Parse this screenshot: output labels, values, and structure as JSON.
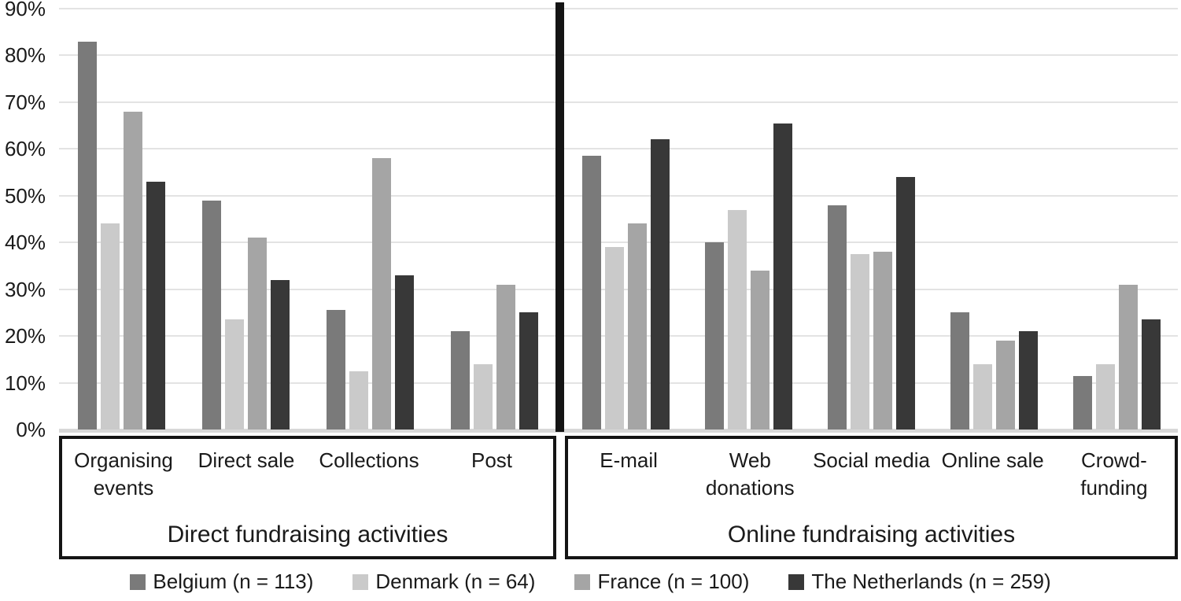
{
  "chart_data": {
    "type": "bar",
    "title": "",
    "xlabel": "",
    "ylabel": "",
    "ylim": [
      0,
      90
    ],
    "ytick_step": 10,
    "ytick_suffix": "%",
    "grid": true,
    "legend_position": "bottom",
    "sections": [
      {
        "label": "Direct fundraising activities",
        "categories": [
          [
            "Organising",
            "events"
          ],
          [
            "Direct sale"
          ],
          [
            "Collections"
          ],
          [
            "Post"
          ]
        ]
      },
      {
        "label": "Online fundraising activities",
        "categories": [
          [
            "E-mail"
          ],
          [
            "Web",
            "donations"
          ],
          [
            "Social media"
          ],
          [
            "Online sale"
          ],
          [
            "Crowd-",
            "funding"
          ]
        ]
      }
    ],
    "series": [
      {
        "name": "Belgium (n = 113)",
        "color": "#7a7a7a",
        "values": [
          [
            83,
            49,
            25.5,
            21
          ],
          [
            58.5,
            40,
            48,
            25,
            11.5
          ]
        ]
      },
      {
        "name": "Denmark (n = 64)",
        "color": "#cacaca",
        "values": [
          [
            44,
            23.5,
            12.5,
            14
          ],
          [
            39,
            47,
            37.5,
            14,
            14
          ]
        ]
      },
      {
        "name": "France (n = 100)",
        "color": "#a5a5a5",
        "values": [
          [
            68,
            41,
            58,
            31
          ],
          [
            44,
            34,
            38,
            19,
            31
          ]
        ]
      },
      {
        "name": "The Netherlands (n = 259)",
        "color": "#383838",
        "values": [
          [
            53,
            32,
            33,
            25
          ],
          [
            62,
            65.5,
            54,
            21,
            23.5
          ]
        ]
      }
    ],
    "colors": {
      "gridline": "#e3e3e3",
      "baseline": "#d8d8d8",
      "divider": "#141414",
      "box_border": "#141414",
      "background": "#ffffff"
    }
  }
}
